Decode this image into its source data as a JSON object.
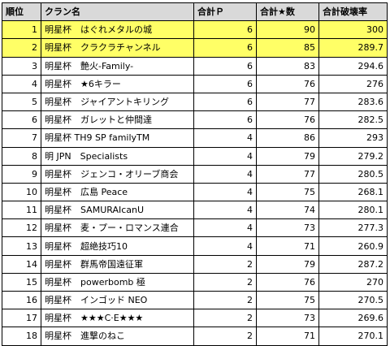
{
  "headers": [
    "順位",
    "クラン名",
    "合計Ｐ",
    "合計★数",
    "合計破壊率"
  ],
  "highlight_color": "#ffff66",
  "header_color": "#d9d9d9",
  "rows": [
    [
      "1",
      "明星杯　はぐれメタルの城",
      "6",
      "90",
      "300"
    ],
    [
      "2",
      "明星杯　クラクラチャンネル",
      "6",
      "85",
      "289.7"
    ],
    [
      "3",
      "明星杯　艶火-Family-",
      "6",
      "83",
      "294.6"
    ],
    [
      "4",
      "明星杯　★6キラー",
      "6",
      "76",
      "276"
    ],
    [
      "5",
      "明星杯　ジャイアントキリング",
      "6",
      "77",
      "283.6"
    ],
    [
      "6",
      "明星杯　ガレットと仲間達",
      "6",
      "76",
      "282.5"
    ],
    [
      "7",
      "明星杯 TH9 SP familyTM",
      "4",
      "86",
      "293"
    ],
    [
      "8",
      "明 JPN　Specialists",
      "4",
      "79",
      "279.2"
    ],
    [
      "9",
      "明星杯　ジェンコ・オリーブ商会",
      "4",
      "77",
      "280.5"
    ],
    [
      "10",
      "明星杯　広島 Peace",
      "4",
      "75",
      "268.1"
    ],
    [
      "11",
      "明星杯　SAMURAIcanU",
      "4",
      "74",
      "280.1"
    ],
    [
      "12",
      "明星杯　麦・プー・ロマンス連合",
      "4",
      "73",
      "277.3"
    ],
    [
      "13",
      "明星杯　超絶技巧10",
      "4",
      "71",
      "260.9"
    ],
    [
      "14",
      "明星杯　群馬帝国遠征軍",
      "2",
      "79",
      "287.2"
    ],
    [
      "15",
      "明星杯　powerbomb 極",
      "2",
      "76",
      "270"
    ],
    [
      "16",
      "明星杯　インゴッド NEO",
      "2",
      "75",
      "270.5"
    ],
    [
      "17",
      "明星杯　★★★C·E★★★",
      "2",
      "73",
      "269.6"
    ],
    [
      "18",
      "明星杯　進撃のねこ",
      "2",
      "71",
      "270.1"
    ]
  ]
}
